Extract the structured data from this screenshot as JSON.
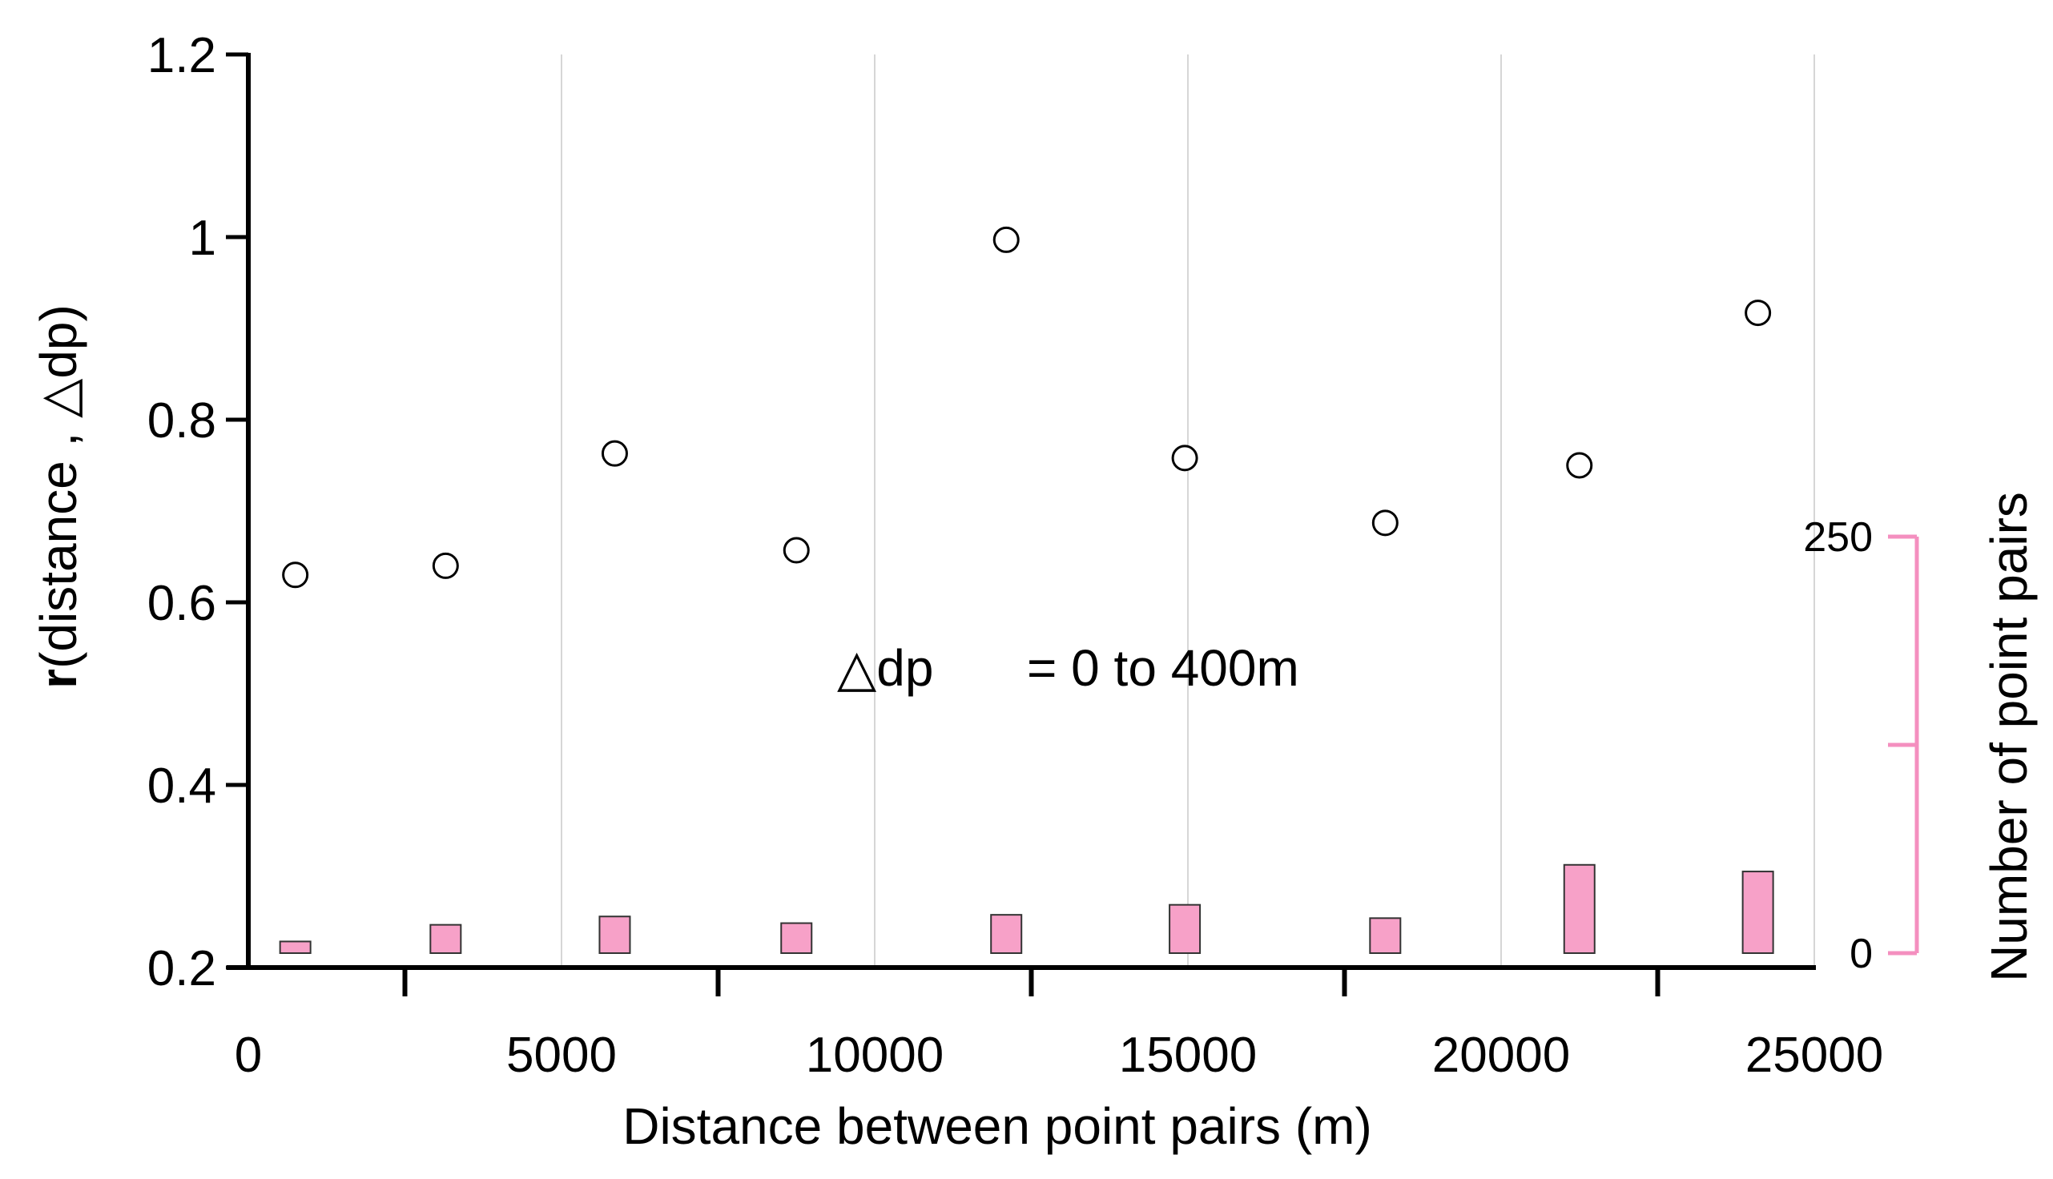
{
  "chart_data": {
    "type": "scatter",
    "xlabel": "Distance between point pairs (m)",
    "ylabel": {
      "bold": "r",
      "rest": "(distance , △dp)"
    },
    "y2label": "Number of point pairs",
    "annotation": {
      "symbol": "△dp",
      "text": "= 0 to 400m"
    },
    "xlim": [
      0,
      25000
    ],
    "ylim": [
      0.2,
      1.2
    ],
    "y2lim": [
      0,
      250
    ],
    "x_ticks": [
      0,
      5000,
      10000,
      15000,
      20000,
      25000
    ],
    "x_tick_labels": [
      "0",
      "5000",
      "10000",
      "15000",
      "20000",
      "25000"
    ],
    "y_ticks": [
      0.2,
      0.4,
      0.6,
      0.8,
      1.0,
      1.2
    ],
    "y_tick_labels": [
      "0.2",
      "0.4",
      "0.6",
      "0.8",
      "1",
      "1.2"
    ],
    "y2_ticks": [
      0,
      125,
      250
    ],
    "y2_tick_labels": [
      "0",
      "",
      "250"
    ],
    "colors": {
      "points": "#000000",
      "bars": "#f7a1c8",
      "bar_edge": "#333333",
      "right_axis": "#f48fbf"
    },
    "series": [
      {
        "type": "scatter",
        "marker": "open-circle",
        "x": [
          750,
          3150,
          5850,
          8750,
          12100,
          14950,
          18150,
          21250,
          24100
        ],
        "y": [
          0.63,
          0.64,
          0.763,
          0.657,
          0.997,
          0.758,
          0.687,
          0.75,
          0.917
        ]
      },
      {
        "type": "bar",
        "axis": "right",
        "x": [
          750,
          3150,
          5850,
          8750,
          12100,
          14950,
          18150,
          21250,
          24100
        ],
        "values": [
          7,
          17,
          22,
          18,
          23,
          29,
          21,
          53,
          49
        ]
      }
    ]
  }
}
